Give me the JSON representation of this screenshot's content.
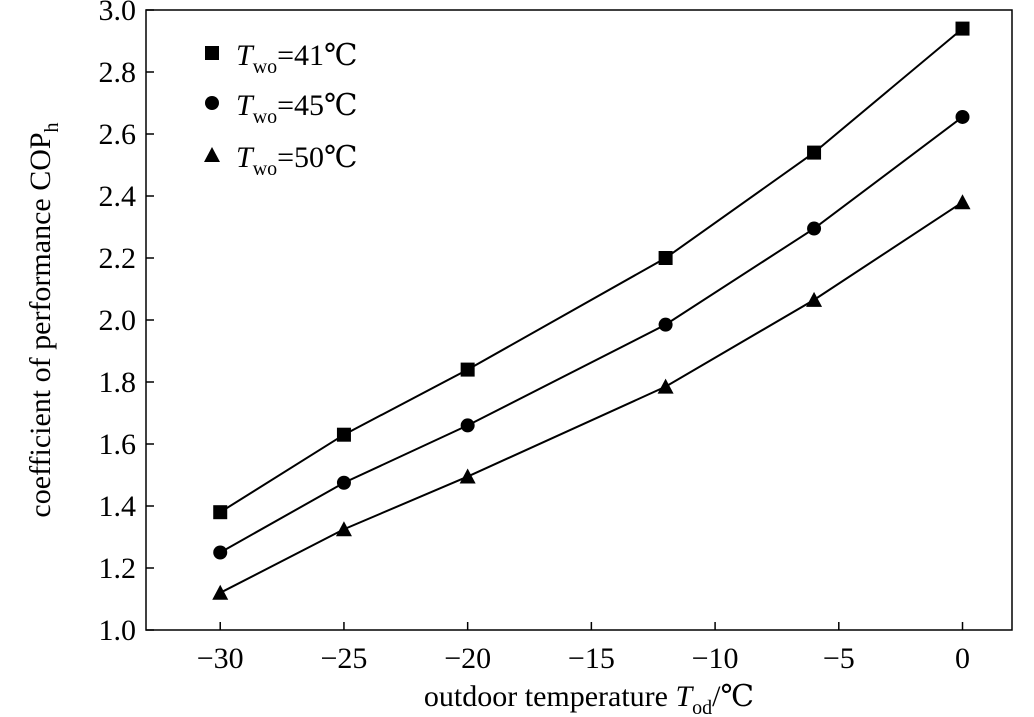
{
  "chart_data": {
    "type": "line",
    "title": "",
    "xlabel": "outdoor temperature T_od/℃",
    "ylabel": "coefficient of performance COP_h",
    "xlim": [
      -33,
      2
    ],
    "ylim": [
      1.0,
      3.0
    ],
    "x_ticks": [
      -30,
      -25,
      -20,
      -15,
      -10,
      -5,
      0
    ],
    "y_ticks": [
      1.0,
      1.2,
      1.4,
      1.6,
      1.8,
      2.0,
      2.2,
      2.4,
      2.6,
      2.8,
      3.0
    ],
    "x_tick_labels": [
      "−30",
      "−25",
      "−20",
      "−15",
      "−10",
      "−5",
      "0"
    ],
    "y_tick_labels": [
      "1.0",
      "1.2",
      "1.4",
      "1.6",
      "1.8",
      "2.0",
      "2.2",
      "2.4",
      "2.6",
      "2.8",
      "3.0"
    ],
    "x": [
      -30,
      -25,
      -20,
      -12,
      -6,
      0
    ],
    "series": [
      {
        "name": "T_wo=41℃",
        "marker": "square",
        "values": [
          1.38,
          1.63,
          1.84,
          2.2,
          2.54,
          2.94
        ]
      },
      {
        "name": "T_wo=45℃",
        "marker": "circle",
        "values": [
          1.25,
          1.475,
          1.66,
          1.985,
          2.295,
          2.655
        ]
      },
      {
        "name": "T_wo=50℃",
        "marker": "triangle",
        "values": [
          1.12,
          1.325,
          1.495,
          1.785,
          2.065,
          2.38
        ]
      }
    ],
    "legend": {
      "position": "top-left",
      "items": [
        {
          "italic": "T",
          "sub": "wo",
          "rest": "=41℃"
        },
        {
          "italic": "T",
          "sub": "wo",
          "rest": "=45℃"
        },
        {
          "italic": "T",
          "sub": "wo",
          "rest": "=50℃"
        }
      ]
    },
    "axis_titles": {
      "x": {
        "pre": "outdoor temperature ",
        "italic": "T",
        "sub": "od",
        "post": "/℃"
      },
      "y": {
        "pre": "coefficient of performance COP",
        "sub": "h"
      }
    },
    "grid": false,
    "colors": {
      "line": "#000000",
      "marker": "#000000",
      "axis": "#000000"
    }
  }
}
